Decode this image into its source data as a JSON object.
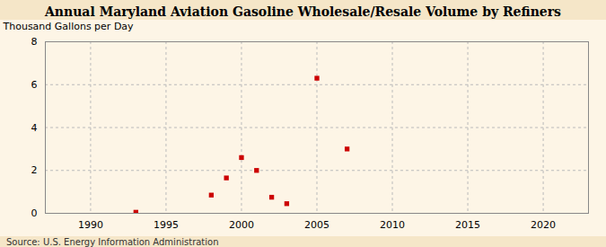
{
  "chart_data": {
    "type": "scatter",
    "title": "Annual Maryland Aviation Gasoline Wholesale/Resale Volume by Refiners",
    "ylabel": "Thousand Gallons per Day",
    "source": "Source: U.S. Energy Information Administration",
    "x": [
      1993,
      1998,
      1999,
      2000,
      2001,
      2002,
      2003,
      2005,
      2007
    ],
    "values": [
      0.05,
      0.85,
      1.65,
      2.6,
      2.0,
      0.75,
      0.45,
      6.3,
      3.0
    ],
    "color": "#cc0000",
    "marker": "square",
    "xlim": [
      1987,
      2023
    ],
    "ylim": [
      0,
      8
    ],
    "xticks": [
      1990,
      1995,
      2000,
      2005,
      2010,
      2015,
      2020
    ],
    "yticks": [
      0,
      2,
      4,
      6,
      8
    ],
    "grid": true
  }
}
